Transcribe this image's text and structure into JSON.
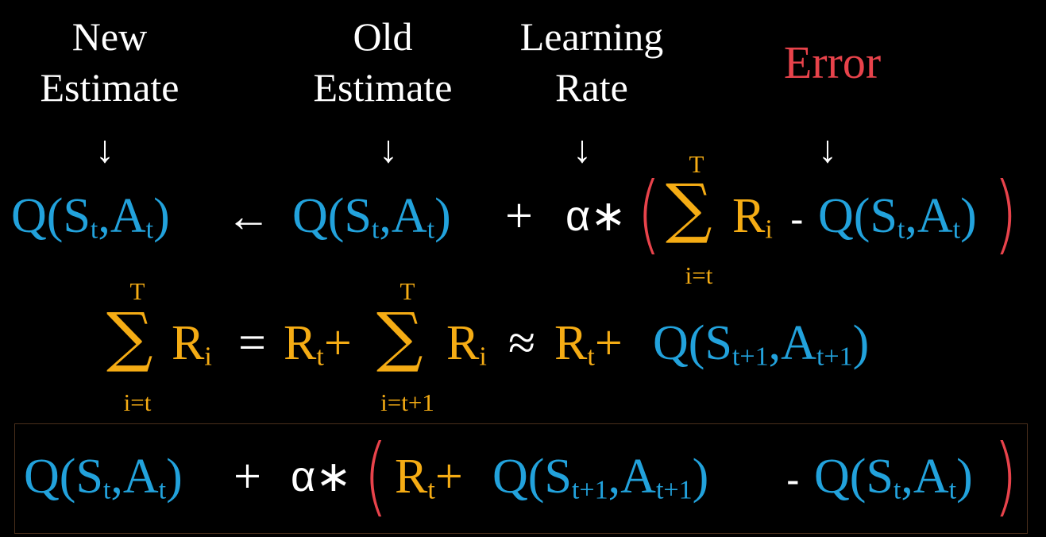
{
  "labels": {
    "new_estimate": [
      "New",
      "Estimate"
    ],
    "old_estimate": [
      "Old",
      "Estimate"
    ],
    "learning_rate": [
      "Learning",
      "Rate"
    ],
    "error": "Error"
  },
  "symbols": {
    "Q": "Q",
    "S": "S",
    "A": "A",
    "R": "R",
    "alpha_times": "α∗",
    "assign_arrow": "←",
    "plus": "+",
    "minus": "-",
    "equals": "=",
    "approx": "≈",
    "comma": ",",
    "lparen": "(",
    "rparen": ")",
    "sum": "∑",
    "down_arrow": "↓"
  },
  "subscripts": {
    "t": "t",
    "i": "i",
    "t_plus_1": "t+1"
  },
  "sum_limits": {
    "upper": "T",
    "lower_i_t": "i=t",
    "lower_i_t1": "i=t+1"
  },
  "colors": {
    "background": "#000000",
    "q_blue": "#22a2dc",
    "reward_gold": "#f5ac14",
    "error_red": "#e8434b",
    "text_white": "#ffffff"
  }
}
